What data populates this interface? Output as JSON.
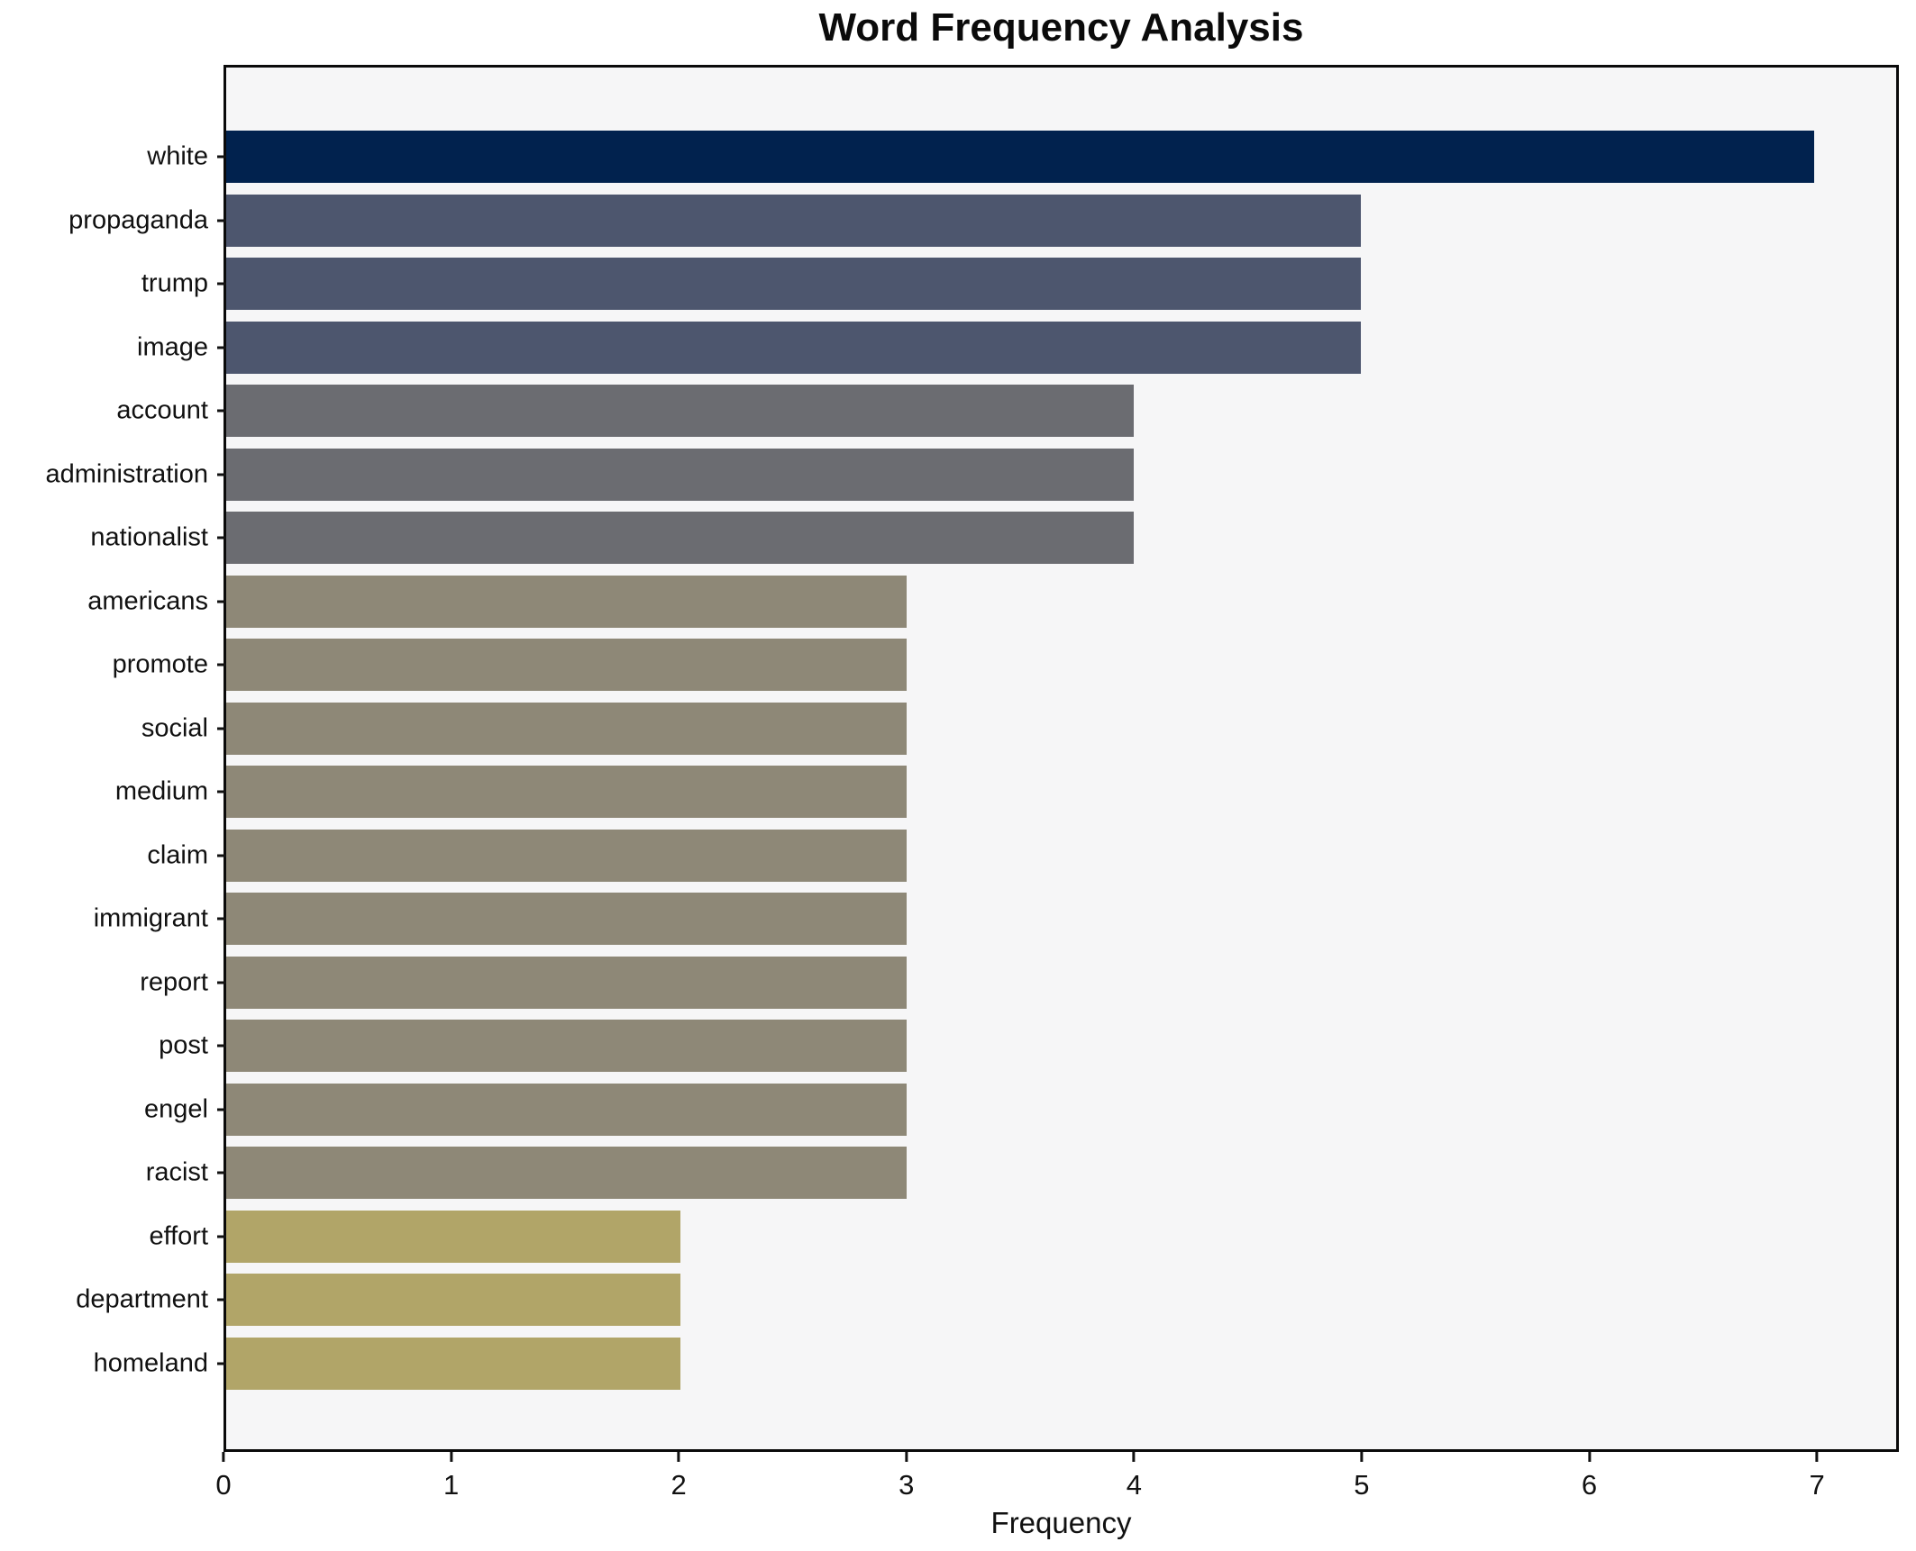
{
  "title": "Word Frequency Analysis",
  "chart_data": {
    "type": "bar",
    "orientation": "horizontal",
    "title": "Word Frequency Analysis",
    "xlabel": "Frequency",
    "ylabel": "",
    "categories": [
      "white",
      "propaganda",
      "trump",
      "image",
      "account",
      "administration",
      "nationalist",
      "americans",
      "promote",
      "social",
      "medium",
      "claim",
      "immigrant",
      "report",
      "post",
      "engel",
      "racist",
      "effort",
      "department",
      "homeland"
    ],
    "values": [
      7,
      5,
      5,
      5,
      4,
      4,
      4,
      3,
      3,
      3,
      3,
      3,
      3,
      3,
      3,
      3,
      3,
      2,
      2,
      2
    ],
    "bar_colors": [
      "#01224e",
      "#4d566e",
      "#4d566e",
      "#4d566e",
      "#6b6c71",
      "#6b6c71",
      "#6b6c71",
      "#8e8877",
      "#8e8877",
      "#8e8877",
      "#8e8877",
      "#8e8877",
      "#8e8877",
      "#8e8877",
      "#8e8877",
      "#8e8877",
      "#8e8877",
      "#b1a568",
      "#b1a568",
      "#b1a568"
    ],
    "xlim": [
      0,
      7.36
    ],
    "xticks": [
      0,
      1,
      2,
      3,
      4,
      5,
      6,
      7
    ],
    "grid": false,
    "legend_position": "none",
    "plot_background": "#f6f6f7",
    "frame_color": "#0a0a0a",
    "colors_by_value": {
      "7": "#01224e",
      "5": "#4d566e",
      "4": "#6b6c71",
      "3": "#8e8877",
      "2": "#b1a568"
    }
  }
}
